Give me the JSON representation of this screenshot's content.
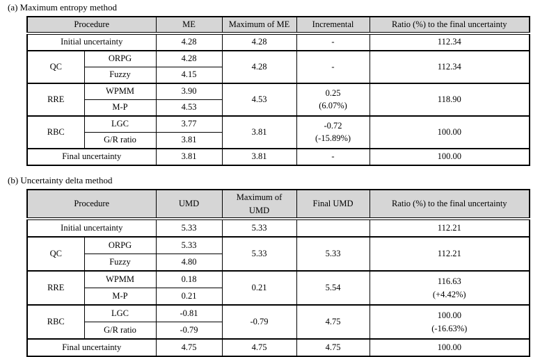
{
  "tables": [
    {
      "title": "(a) Maximum entropy method",
      "header": [
        {
          "text": "Procedure",
          "colspan": 2
        },
        {
          "text": "ME"
        },
        {
          "text": "Maximum of ME"
        },
        {
          "text": "Incremental"
        },
        {
          "text": "Ratio (%) to the final uncertainty"
        }
      ],
      "rows": [
        {
          "group": false,
          "cells": [
            {
              "text": "Initial uncertainty",
              "colspan": 2,
              "name": "procedure-cell"
            },
            {
              "text": "4.28"
            },
            {
              "text": "4.28"
            },
            {
              "text": "-"
            },
            {
              "text": "112.34"
            }
          ]
        },
        {
          "group": true,
          "cells": [
            {
              "text": "QC",
              "rowspan": 2,
              "name": "procedure-cell"
            },
            {
              "text": "ORPG",
              "name": "subprocedure-cell"
            },
            {
              "text": "4.28"
            },
            {
              "text": "4.28",
              "rowspan": 2
            },
            {
              "text": "-",
              "rowspan": 2
            },
            {
              "text": "112.34",
              "rowspan": 2
            }
          ]
        },
        {
          "group": false,
          "cells": [
            {
              "text": "Fuzzy",
              "name": "subprocedure-cell"
            },
            {
              "text": "4.15"
            }
          ]
        },
        {
          "group": true,
          "cells": [
            {
              "text": "RRE",
              "rowspan": 2,
              "name": "procedure-cell"
            },
            {
              "text": "WPMM",
              "name": "subprocedure-cell"
            },
            {
              "text": "3.90"
            },
            {
              "text": "4.53",
              "rowspan": 2
            },
            {
              "text": "0.25\n(6.07%)",
              "rowspan": 2
            },
            {
              "text": "118.90",
              "rowspan": 2
            }
          ]
        },
        {
          "group": false,
          "cells": [
            {
              "text": "M-P",
              "name": "subprocedure-cell"
            },
            {
              "text": "4.53"
            }
          ]
        },
        {
          "group": true,
          "cells": [
            {
              "text": "RBC",
              "rowspan": 2,
              "name": "procedure-cell"
            },
            {
              "text": "LGC",
              "name": "subprocedure-cell"
            },
            {
              "text": "3.77"
            },
            {
              "text": "3.81",
              "rowspan": 2
            },
            {
              "text": "-0.72\n(-15.89%)",
              "rowspan": 2
            },
            {
              "text": "100.00",
              "rowspan": 2
            }
          ]
        },
        {
          "group": false,
          "cells": [
            {
              "text": "G/R ratio",
              "name": "subprocedure-cell"
            },
            {
              "text": "3.81"
            }
          ]
        },
        {
          "group": true,
          "cells": [
            {
              "text": "Final uncertainty",
              "colspan": 2,
              "name": "procedure-cell"
            },
            {
              "text": "3.81"
            },
            {
              "text": "3.81"
            },
            {
              "text": "-"
            },
            {
              "text": "100.00"
            }
          ]
        }
      ]
    },
    {
      "title": "(b) Uncertainty delta method",
      "header": [
        {
          "text": "Procedure",
          "colspan": 2
        },
        {
          "text": "UMD"
        },
        {
          "text": "Maximum of\nUMD"
        },
        {
          "text": "Final UMD"
        },
        {
          "text": "Ratio (%) to the final uncertainty"
        }
      ],
      "rows": [
        {
          "group": false,
          "cells": [
            {
              "text": "Initial uncertainty",
              "colspan": 2,
              "name": "procedure-cell"
            },
            {
              "text": "5.33"
            },
            {
              "text": "5.33"
            },
            {
              "text": ""
            },
            {
              "text": "112.21"
            }
          ]
        },
        {
          "group": true,
          "cells": [
            {
              "text": "QC",
              "rowspan": 2,
              "name": "procedure-cell"
            },
            {
              "text": "ORPG",
              "name": "subprocedure-cell"
            },
            {
              "text": "5.33"
            },
            {
              "text": "5.33",
              "rowspan": 2
            },
            {
              "text": "5.33",
              "rowspan": 2
            },
            {
              "text": "112.21",
              "rowspan": 2
            }
          ]
        },
        {
          "group": false,
          "cells": [
            {
              "text": "Fuzzy",
              "name": "subprocedure-cell"
            },
            {
              "text": "4.80"
            }
          ]
        },
        {
          "group": true,
          "cells": [
            {
              "text": "RRE",
              "rowspan": 2,
              "name": "procedure-cell"
            },
            {
              "text": "WPMM",
              "name": "subprocedure-cell"
            },
            {
              "text": "0.18"
            },
            {
              "text": "0.21",
              "rowspan": 2
            },
            {
              "text": "5.54",
              "rowspan": 2
            },
            {
              "text": "116.63\n(+4.42%)",
              "rowspan": 2
            }
          ]
        },
        {
          "group": false,
          "cells": [
            {
              "text": "M-P",
              "name": "subprocedure-cell"
            },
            {
              "text": "0.21"
            }
          ]
        },
        {
          "group": true,
          "cells": [
            {
              "text": "RBC",
              "rowspan": 2,
              "name": "procedure-cell"
            },
            {
              "text": "LGC",
              "name": "subprocedure-cell"
            },
            {
              "text": "-0.81"
            },
            {
              "text": "-0.79",
              "rowspan": 2
            },
            {
              "text": "4.75",
              "rowspan": 2
            },
            {
              "text": "100.00\n(-16.63%)",
              "rowspan": 2
            }
          ]
        },
        {
          "group": false,
          "cells": [
            {
              "text": "G/R ratio",
              "name": "subprocedure-cell"
            },
            {
              "text": "-0.79"
            }
          ]
        },
        {
          "group": true,
          "cells": [
            {
              "text": "Final uncertainty",
              "colspan": 2,
              "name": "procedure-cell"
            },
            {
              "text": "4.75"
            },
            {
              "text": "4.75"
            },
            {
              "text": "4.75"
            },
            {
              "text": "100.00"
            }
          ]
        }
      ]
    }
  ],
  "colors": {
    "header_background": "#d6d6d6",
    "border": "#000000",
    "text": "#000000"
  }
}
